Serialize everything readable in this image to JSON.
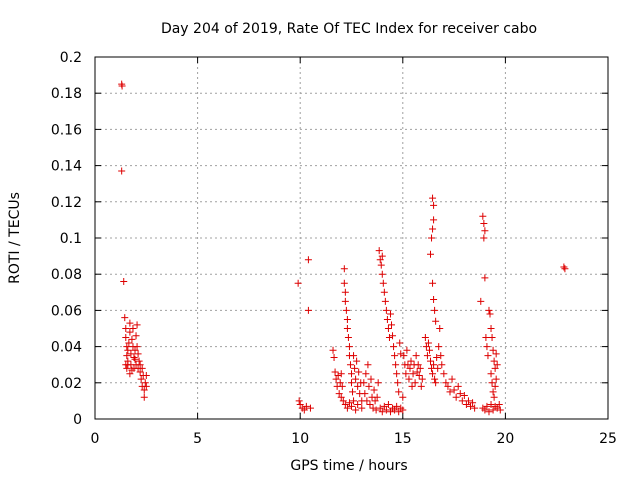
{
  "chart_data": {
    "type": "scatter",
    "title": "Day 204 of 2019, Rate Of TEC Index for receiver cabo",
    "xlabel": "GPS time / hours",
    "ylabel": "ROTI / TECUs",
    "xlim": [
      0,
      25
    ],
    "ylim": [
      0,
      0.2
    ],
    "xticks": [
      0,
      5,
      10,
      15,
      20,
      25
    ],
    "yticks": [
      0,
      0.02,
      0.04,
      0.06,
      0.08,
      0.1,
      0.12,
      0.14,
      0.16,
      0.18,
      0.2
    ],
    "xtick_labels": [
      "0",
      "5",
      "10",
      "15",
      "20",
      "25"
    ],
    "ytick_labels": [
      "0",
      "0.02",
      "0.04",
      "0.06",
      "0.08",
      "0.1",
      "0.12",
      "0.14",
      "0.16",
      "0.18",
      "0.2"
    ],
    "grid": true,
    "marker": "+",
    "series": [
      {
        "name": "ROTI",
        "color": "#dd0000",
        "points": [
          [
            1.3,
            0.185
          ],
          [
            1.32,
            0.184
          ],
          [
            1.3,
            0.137
          ],
          [
            1.4,
            0.076
          ],
          [
            1.45,
            0.056
          ],
          [
            1.5,
            0.05
          ],
          [
            1.5,
            0.045
          ],
          [
            1.55,
            0.04
          ],
          [
            1.55,
            0.035
          ],
          [
            1.5,
            0.03
          ],
          [
            1.55,
            0.028
          ],
          [
            1.6,
            0.032
          ],
          [
            1.6,
            0.038
          ],
          [
            1.65,
            0.042
          ],
          [
            1.7,
            0.048
          ],
          [
            1.7,
            0.053
          ],
          [
            1.75,
            0.036
          ],
          [
            1.75,
            0.03
          ],
          [
            1.8,
            0.044
          ],
          [
            1.85,
            0.04
          ],
          [
            1.85,
            0.05
          ],
          [
            1.9,
            0.034
          ],
          [
            1.9,
            0.028
          ],
          [
            1.95,
            0.038
          ],
          [
            2.0,
            0.03
          ],
          [
            2.0,
            0.046
          ],
          [
            2.05,
            0.052
          ],
          [
            2.1,
            0.028
          ],
          [
            2.1,
            0.036
          ],
          [
            2.15,
            0.032
          ],
          [
            2.2,
            0.026
          ],
          [
            2.25,
            0.022
          ],
          [
            2.3,
            0.028
          ],
          [
            2.3,
            0.018
          ],
          [
            2.35,
            0.024
          ],
          [
            2.4,
            0.016
          ],
          [
            2.4,
            0.012
          ],
          [
            2.45,
            0.02
          ],
          [
            2.5,
            0.018
          ],
          [
            2.5,
            0.024
          ],
          [
            1.6,
            0.03
          ],
          [
            1.7,
            0.025
          ],
          [
            1.8,
            0.027
          ],
          [
            1.95,
            0.033
          ],
          [
            2.05,
            0.04
          ],
          [
            2.2,
            0.03
          ],
          [
            9.9,
            0.075
          ],
          [
            10.4,
            0.088
          ],
          [
            10.4,
            0.06
          ],
          [
            9.95,
            0.01
          ],
          [
            10.0,
            0.008
          ],
          [
            10.1,
            0.006
          ],
          [
            10.2,
            0.005
          ],
          [
            10.3,
            0.007
          ],
          [
            10.5,
            0.006
          ],
          [
            11.6,
            0.038
          ],
          [
            11.65,
            0.034
          ],
          [
            11.7,
            0.026
          ],
          [
            11.75,
            0.022
          ],
          [
            11.8,
            0.018
          ],
          [
            11.85,
            0.024
          ],
          [
            11.9,
            0.014
          ],
          [
            11.95,
            0.02
          ],
          [
            12.0,
            0.012
          ],
          [
            12.0,
            0.025
          ],
          [
            12.05,
            0.018
          ],
          [
            12.1,
            0.01
          ],
          [
            12.15,
            0.083
          ],
          [
            12.15,
            0.075
          ],
          [
            12.2,
            0.07
          ],
          [
            12.2,
            0.065
          ],
          [
            12.25,
            0.06
          ],
          [
            12.3,
            0.055
          ],
          [
            12.3,
            0.05
          ],
          [
            12.35,
            0.045
          ],
          [
            12.4,
            0.04
          ],
          [
            12.4,
            0.035
          ],
          [
            12.45,
            0.03
          ],
          [
            12.5,
            0.025
          ],
          [
            12.5,
            0.02
          ],
          [
            12.55,
            0.015
          ],
          [
            12.6,
            0.01
          ],
          [
            12.6,
            0.035
          ],
          [
            12.65,
            0.028
          ],
          [
            12.7,
            0.022
          ],
          [
            12.75,
            0.032
          ],
          [
            12.8,
            0.018
          ],
          [
            12.85,
            0.026
          ],
          [
            12.9,
            0.014
          ],
          [
            12.95,
            0.02
          ],
          [
            13.0,
            0.01
          ],
          [
            12.2,
            0.008
          ],
          [
            12.3,
            0.006
          ],
          [
            12.4,
            0.009
          ],
          [
            12.5,
            0.007
          ],
          [
            12.7,
            0.005
          ],
          [
            12.8,
            0.008
          ],
          [
            13.0,
            0.006
          ],
          [
            13.1,
            0.02
          ],
          [
            13.15,
            0.014
          ],
          [
            13.2,
            0.025
          ],
          [
            13.25,
            0.01
          ],
          [
            13.3,
            0.03
          ],
          [
            13.35,
            0.018
          ],
          [
            13.4,
            0.008
          ],
          [
            13.45,
            0.022
          ],
          [
            13.5,
            0.012
          ],
          [
            13.55,
            0.006
          ],
          [
            13.6,
            0.016
          ],
          [
            13.65,
            0.01
          ],
          [
            13.7,
            0.005
          ],
          [
            13.75,
            0.012
          ],
          [
            13.8,
            0.02
          ],
          [
            13.85,
            0.093
          ],
          [
            13.9,
            0.088
          ],
          [
            13.95,
            0.085
          ],
          [
            14.0,
            0.09
          ],
          [
            14.0,
            0.08
          ],
          [
            14.05,
            0.075
          ],
          [
            14.1,
            0.07
          ],
          [
            14.15,
            0.065
          ],
          [
            14.2,
            0.06
          ],
          [
            14.25,
            0.055
          ],
          [
            14.3,
            0.05
          ],
          [
            14.35,
            0.045
          ],
          [
            14.4,
            0.058
          ],
          [
            14.45,
            0.052
          ],
          [
            14.5,
            0.046
          ],
          [
            14.55,
            0.04
          ],
          [
            14.6,
            0.035
          ],
          [
            14.65,
            0.03
          ],
          [
            14.7,
            0.025
          ],
          [
            14.75,
            0.02
          ],
          [
            14.8,
            0.015
          ],
          [
            14.85,
            0.042
          ],
          [
            14.9,
            0.036
          ],
          [
            13.9,
            0.006
          ],
          [
            14.0,
            0.004
          ],
          [
            14.1,
            0.007
          ],
          [
            14.2,
            0.005
          ],
          [
            14.3,
            0.008
          ],
          [
            14.4,
            0.004
          ],
          [
            14.5,
            0.006
          ],
          [
            14.6,
            0.005
          ],
          [
            14.7,
            0.007
          ],
          [
            14.8,
            0.004
          ],
          [
            14.9,
            0.006
          ],
          [
            15.0,
            0.005
          ],
          [
            15.0,
            0.012
          ],
          [
            15.05,
            0.035
          ],
          [
            15.1,
            0.03
          ],
          [
            15.15,
            0.025
          ],
          [
            15.2,
            0.038
          ],
          [
            15.25,
            0.03
          ],
          [
            15.3,
            0.022
          ],
          [
            15.35,
            0.028
          ],
          [
            15.4,
            0.032
          ],
          [
            15.45,
            0.018
          ],
          [
            15.5,
            0.025
          ],
          [
            15.55,
            0.03
          ],
          [
            15.6,
            0.02
          ],
          [
            15.65,
            0.035
          ],
          [
            15.7,
            0.026
          ],
          [
            15.75,
            0.03
          ],
          [
            15.8,
            0.024
          ],
          [
            15.85,
            0.028
          ],
          [
            15.9,
            0.018
          ],
          [
            15.95,
            0.022
          ],
          [
            16.1,
            0.045
          ],
          [
            16.15,
            0.04
          ],
          [
            16.2,
            0.035
          ],
          [
            16.25,
            0.042
          ],
          [
            16.3,
            0.038
          ],
          [
            16.35,
            0.032
          ],
          [
            16.4,
            0.028
          ],
          [
            16.45,
            0.025
          ],
          [
            16.5,
            0.03
          ],
          [
            16.55,
            0.022
          ],
          [
            16.6,
            0.02
          ],
          [
            16.65,
            0.034
          ],
          [
            16.7,
            0.028
          ],
          [
            16.75,
            0.04
          ],
          [
            16.8,
            0.05
          ],
          [
            16.85,
            0.035
          ],
          [
            16.9,
            0.03
          ],
          [
            16.45,
            0.122
          ],
          [
            16.5,
            0.118
          ],
          [
            16.5,
            0.11
          ],
          [
            16.45,
            0.105
          ],
          [
            16.4,
            0.1
          ],
          [
            16.35,
            0.091
          ],
          [
            16.45,
            0.075
          ],
          [
            16.5,
            0.066
          ],
          [
            16.55,
            0.06
          ],
          [
            16.6,
            0.054
          ],
          [
            17.0,
            0.025
          ],
          [
            17.1,
            0.02
          ],
          [
            17.2,
            0.018
          ],
          [
            17.3,
            0.015
          ],
          [
            17.4,
            0.022
          ],
          [
            17.5,
            0.016
          ],
          [
            17.6,
            0.012
          ],
          [
            17.7,
            0.018
          ],
          [
            17.8,
            0.014
          ],
          [
            17.9,
            0.01
          ],
          [
            18.0,
            0.013
          ],
          [
            18.1,
            0.008
          ],
          [
            18.2,
            0.01
          ],
          [
            18.3,
            0.007
          ],
          [
            18.4,
            0.009
          ],
          [
            18.5,
            0.006
          ],
          [
            18.8,
            0.065
          ],
          [
            18.9,
            0.112
          ],
          [
            18.95,
            0.108
          ],
          [
            19.0,
            0.104
          ],
          [
            18.95,
            0.1
          ],
          [
            19.0,
            0.078
          ],
          [
            19.05,
            0.045
          ],
          [
            19.1,
            0.04
          ],
          [
            19.15,
            0.035
          ],
          [
            19.2,
            0.06
          ],
          [
            19.25,
            0.058
          ],
          [
            19.3,
            0.05
          ],
          [
            19.35,
            0.045
          ],
          [
            19.4,
            0.038
          ],
          [
            19.45,
            0.032
          ],
          [
            19.5,
            0.028
          ],
          [
            19.55,
            0.036
          ],
          [
            19.6,
            0.03
          ],
          [
            19.3,
            0.025
          ],
          [
            19.35,
            0.02
          ],
          [
            19.4,
            0.015
          ],
          [
            19.45,
            0.012
          ],
          [
            19.5,
            0.018
          ],
          [
            19.55,
            0.022
          ],
          [
            18.9,
            0.006
          ],
          [
            19.0,
            0.005
          ],
          [
            19.1,
            0.007
          ],
          [
            19.2,
            0.004
          ],
          [
            19.3,
            0.008
          ],
          [
            19.4,
            0.005
          ],
          [
            19.5,
            0.007
          ],
          [
            19.6,
            0.006
          ],
          [
            19.7,
            0.008
          ],
          [
            19.75,
            0.005
          ],
          [
            22.85,
            0.084
          ],
          [
            22.9,
            0.083
          ]
        ]
      }
    ]
  }
}
